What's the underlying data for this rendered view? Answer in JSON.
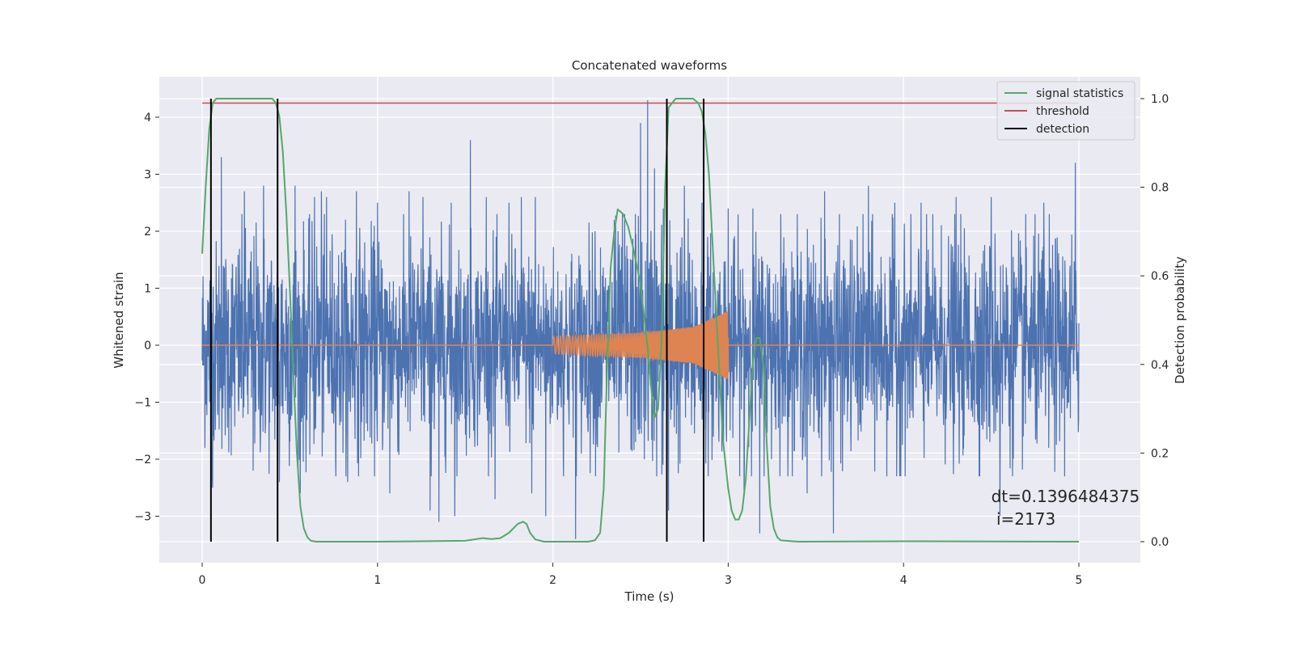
{
  "chart_data": {
    "type": "line",
    "title": "Concatenated waveforms",
    "xlabel": "Time (s)",
    "ylabel": "Whitened strain",
    "y2label": "Detection probability",
    "xlim": [
      -0.25,
      5.25
    ],
    "ylim": [
      -3.8,
      4.6
    ],
    "y2lim": [
      -0.047,
      1.045
    ],
    "xticks": [
      0,
      1,
      2,
      3,
      4,
      5
    ],
    "yticks": [
      -3,
      -2,
      -1,
      0,
      1,
      2,
      3,
      4
    ],
    "yticklabels": [
      "−3",
      "−2",
      "−1",
      "0",
      "1",
      "2",
      "3",
      "4"
    ],
    "y2ticks": [
      0.0,
      0.2,
      0.4,
      0.6,
      0.8,
      1.0
    ],
    "y2ticklabels": [
      "0.0",
      "0.2",
      "0.4",
      "0.6",
      "0.8",
      "1.0"
    ],
    "grid": true,
    "legend_position": "top-right",
    "colors": {
      "strain": "#4c72b0",
      "injection": "#dd8452",
      "signal_statistics": "#55a868",
      "threshold": "#c44e52",
      "detection": "#000000",
      "plot_background": "#eaeaf2",
      "grid": "#ffffff"
    },
    "legend": [
      {
        "key": "signal_statistics",
        "label": "signal statistics"
      },
      {
        "key": "threshold",
        "label": "threshold"
      },
      {
        "key": "detection",
        "label": "detection"
      }
    ],
    "strain": {
      "x_range": [
        0,
        5
      ],
      "envelope": [
        [
          0,
          1.4
        ],
        [
          0.3,
          1.6
        ],
        [
          1.0,
          1.5
        ],
        [
          1.5,
          1.4
        ],
        [
          2.0,
          1.3
        ],
        [
          2.4,
          1.6
        ],
        [
          2.6,
          1.7
        ],
        [
          3.0,
          1.4
        ],
        [
          3.5,
          1.5
        ],
        [
          4.0,
          1.5
        ],
        [
          5.0,
          1.5
        ]
      ],
      "spikes": [
        [
          0.05,
          2.3
        ],
        [
          0.06,
          -2.5
        ],
        [
          0.11,
          3.3
        ],
        [
          0.24,
          2.7
        ],
        [
          0.29,
          -2.2
        ],
        [
          0.35,
          2.8
        ],
        [
          0.44,
          -2.4
        ],
        [
          0.53,
          2.8
        ],
        [
          0.56,
          -2.6
        ],
        [
          0.64,
          2.6
        ],
        [
          0.68,
          2.7
        ],
        [
          0.71,
          2.6
        ],
        [
          0.83,
          -2.4
        ],
        [
          0.88,
          2.7
        ],
        [
          1.0,
          2.5
        ],
        [
          1.07,
          -2.6
        ],
        [
          1.18,
          2.7
        ],
        [
          1.26,
          2.6
        ],
        [
          1.3,
          -2.9
        ],
        [
          1.35,
          -3.1
        ],
        [
          1.42,
          2.5
        ],
        [
          1.44,
          -3.0
        ],
        [
          1.53,
          3.6
        ],
        [
          1.62,
          2.6
        ],
        [
          1.67,
          -2.7
        ],
        [
          1.75,
          2.5
        ],
        [
          1.82,
          2.6
        ],
        [
          1.88,
          -2.6
        ],
        [
          1.9,
          2.6
        ],
        [
          1.96,
          -3.0
        ],
        [
          2.06,
          -2.0
        ],
        [
          2.13,
          -3.4
        ],
        [
          2.24,
          2.0
        ],
        [
          2.35,
          2.2
        ],
        [
          2.41,
          2.3
        ],
        [
          2.47,
          2.3
        ],
        [
          2.5,
          3.9
        ],
        [
          2.54,
          4.3
        ],
        [
          2.58,
          3.1
        ],
        [
          2.63,
          2.4
        ],
        [
          2.66,
          -2.9
        ],
        [
          2.75,
          2.8
        ],
        [
          2.85,
          2.5
        ],
        [
          3.0,
          2.4
        ],
        [
          3.09,
          -2.6
        ],
        [
          3.14,
          2.4
        ],
        [
          3.18,
          -3.3
        ],
        [
          3.3,
          2.3
        ],
        [
          3.45,
          -2.6
        ],
        [
          3.55,
          2.7
        ],
        [
          3.6,
          -3.3
        ],
        [
          3.8,
          2.8
        ],
        [
          3.95,
          2.5
        ],
        [
          4.1,
          2.5
        ],
        [
          4.3,
          2.6
        ],
        [
          4.5,
          2.6
        ],
        [
          4.55,
          -3.0
        ],
        [
          4.8,
          2.5
        ],
        [
          4.98,
          3.2
        ]
      ]
    },
    "injection": {
      "start": 2.0,
      "end": 3.0,
      "amplitude": [
        [
          2.0,
          0.15
        ],
        [
          2.5,
          0.22
        ],
        [
          2.8,
          0.32
        ],
        [
          3.0,
          0.6
        ]
      ],
      "frequency_hz": [
        [
          2.0,
          50
        ],
        [
          3.0,
          140
        ]
      ]
    },
    "signal_statistics": {
      "x": [
        0,
        0.02,
        0.04,
        0.06,
        0.08,
        0.12,
        0.2,
        0.4,
        0.42,
        0.44,
        0.46,
        0.48,
        0.5,
        0.52,
        0.54,
        0.56,
        0.58,
        0.6,
        0.62,
        0.65,
        1.0,
        1.5,
        1.6,
        1.65,
        1.7,
        1.75,
        1.8,
        1.83,
        1.85,
        1.87,
        1.9,
        1.95,
        2.0,
        2.2,
        2.24,
        2.27,
        2.29,
        2.31,
        2.33,
        2.35,
        2.37,
        2.4,
        2.43,
        2.46,
        2.5,
        2.54,
        2.56,
        2.58,
        2.6,
        2.62,
        2.64,
        2.66,
        2.7,
        2.8,
        2.83,
        2.85,
        2.87,
        2.89,
        2.92,
        2.95,
        2.97,
        3.0,
        3.02,
        3.04,
        3.06,
        3.08,
        3.1,
        3.12,
        3.14,
        3.16,
        3.18,
        3.2,
        3.22,
        3.24,
        3.26,
        3.28,
        3.3,
        3.4,
        4.0,
        5.0
      ],
      "y": [
        0.65,
        0.8,
        0.93,
        0.99,
        1.0,
        1.0,
        1.0,
        1.0,
        0.99,
        0.96,
        0.88,
        0.74,
        0.57,
        0.38,
        0.2,
        0.08,
        0.03,
        0.01,
        0.002,
        0.0,
        0.0,
        0.002,
        0.008,
        0.006,
        0.008,
        0.02,
        0.04,
        0.045,
        0.04,
        0.02,
        0.005,
        0.0,
        0.0,
        0.0,
        0.003,
        0.02,
        0.12,
        0.4,
        0.62,
        0.7,
        0.75,
        0.74,
        0.71,
        0.66,
        0.58,
        0.44,
        0.35,
        0.28,
        0.3,
        0.45,
        0.8,
        0.98,
        1.0,
        1.0,
        0.99,
        0.97,
        0.92,
        0.83,
        0.6,
        0.38,
        0.23,
        0.12,
        0.07,
        0.05,
        0.05,
        0.07,
        0.14,
        0.27,
        0.4,
        0.46,
        0.46,
        0.4,
        0.22,
        0.08,
        0.03,
        0.01,
        0.003,
        0.0,
        0.001,
        0.0
      ]
    },
    "threshold": {
      "x": [
        0,
        5
      ],
      "value": 0.99
    },
    "detections": [
      0.05,
      0.43,
      2.65,
      2.86
    ],
    "annotation": {
      "line1": "dt=0.1396484375",
      "line2": " i=2173",
      "x": 4.5,
      "y": -2.75
    }
  }
}
